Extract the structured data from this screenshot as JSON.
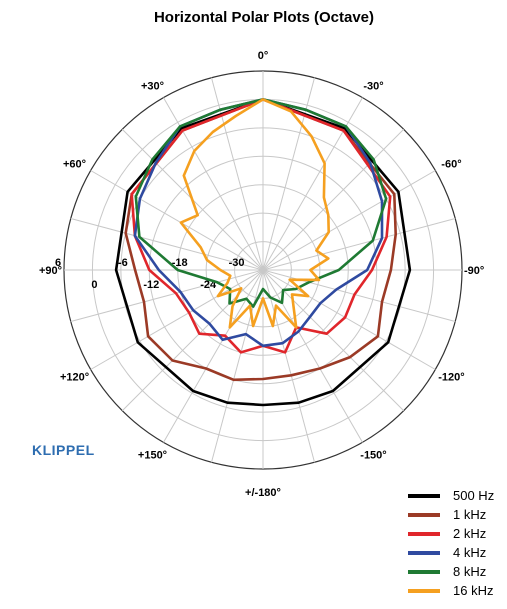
{
  "chart_data": {
    "type": "polar-line",
    "title": "Horizontal Polar Plots (Octave)",
    "angle_labels": [
      {
        "angle": 0,
        "text": "0°"
      },
      {
        "angle": 30,
        "text": "+30°"
      },
      {
        "angle": -30,
        "text": "-30°"
      },
      {
        "angle": 60,
        "text": "+60°"
      },
      {
        "angle": -60,
        "text": "-60°"
      },
      {
        "angle": 90,
        "text": "+90°"
      },
      {
        "angle": -90,
        "text": "-90°"
      },
      {
        "angle": 120,
        "text": "+120°"
      },
      {
        "angle": -120,
        "text": "-120°"
      },
      {
        "angle": 150,
        "text": "+150°"
      },
      {
        "angle": -150,
        "text": "-150°"
      },
      {
        "angle": 180,
        "text": "+/-180°"
      }
    ],
    "radial_range_db": [
      -36,
      6
    ],
    "radial_ticks": [
      6,
      0,
      -6,
      -12,
      -18,
      -24,
      -30
    ],
    "radial_tick_labels": [
      "6",
      "0",
      "-6",
      "-12",
      "-18",
      "-24",
      "-30"
    ],
    "angle_unit": "degrees",
    "angle_step": 15,
    "series": [
      {
        "name": "500 Hz",
        "color": "#000000",
        "angles": [
          0,
          30,
          60,
          90,
          120,
          150,
          165,
          180,
          -165,
          -150,
          -120,
          -90,
          -60,
          -30
        ],
        "values": [
          0,
          -1.5,
          -3,
          -5,
          -5.5,
          -6.5,
          -7,
          -7.5,
          -7,
          -6.5,
          -5.5,
          -5,
          -3,
          -1.5
        ]
      },
      {
        "name": "1 kHz",
        "color": "#9b3a26",
        "angles": [
          0,
          30,
          60,
          75,
          90,
          105,
          120,
          135,
          150,
          165,
          180,
          -165,
          -150,
          -135,
          -120,
          -105,
          -90,
          -75,
          -60,
          -30
        ],
        "values": [
          0,
          -2,
          -4,
          -6,
          -9,
          -10,
          -8,
          -9,
          -12,
          -12,
          -13,
          -13,
          -12,
          -10,
          -8,
          -10,
          -9,
          -7,
          -4,
          -2
        ]
      },
      {
        "name": "2 kHz",
        "color": "#e0262b",
        "angles": [
          0,
          30,
          60,
          75,
          90,
          105,
          120,
          135,
          150,
          165,
          180,
          -165,
          -150,
          -135,
          -120,
          -105,
          -90,
          -75,
          -60,
          -30
        ],
        "values": [
          0,
          -2,
          -4,
          -8,
          -12,
          -17,
          -18,
          -17,
          -20,
          -18,
          -20,
          -18,
          -22,
          -17,
          -16,
          -16,
          -13,
          -9,
          -5,
          -2
        ]
      },
      {
        "name": "4 kHz",
        "color": "#2f4aa0",
        "angles": [
          0,
          15,
          30,
          45,
          60,
          75,
          90,
          105,
          120,
          135,
          150,
          165,
          180,
          -165,
          -150,
          -135,
          -120,
          -105,
          -90,
          -75,
          -60,
          -45,
          -30,
          -15
        ],
        "values": [
          0,
          -1,
          -1,
          -4,
          -6,
          -8,
          -14,
          -18,
          -19,
          -20,
          -19,
          -22,
          -20,
          -20,
          -21,
          -22,
          -22,
          -20,
          -14,
          -10,
          -7,
          -4,
          -1,
          -1
        ]
      },
      {
        "name": "8 kHz",
        "color": "#1f7a33",
        "angles": [
          0,
          15,
          30,
          45,
          60,
          75,
          90,
          105,
          120,
          135,
          150,
          165,
          180,
          -165,
          -150,
          -135,
          -120,
          -105,
          -90,
          -75,
          -60,
          -45,
          -30,
          -15
        ],
        "values": [
          0,
          -1,
          -1,
          -3,
          -5,
          -9,
          -18,
          -26,
          -28,
          -26,
          -29,
          -28,
          -32,
          -30,
          -28,
          -30,
          -28,
          -26,
          -20,
          -12,
          -6,
          -3,
          -1,
          -1
        ]
      },
      {
        "name": "16 kHz",
        "color": "#f5a020",
        "angles": [
          0,
          10,
          20,
          30,
          40,
          50,
          60,
          70,
          80,
          90,
          100,
          110,
          120,
          130,
          140,
          150,
          160,
          170,
          180,
          -170,
          -160,
          -150,
          -140,
          -130,
          -120,
          -110,
          -100,
          -90,
          -80,
          -70,
          -60,
          -50,
          -40,
          -30,
          -20,
          -10
        ],
        "values": [
          0,
          -3,
          -5,
          -7,
          -10,
          -18,
          -16,
          -22,
          -24,
          -27,
          -29,
          -28,
          -25,
          -30,
          -26,
          -22,
          -28,
          -24,
          -30,
          -24,
          -28,
          -22,
          -26,
          -28,
          -25,
          -30,
          -24,
          -26,
          -22,
          -24,
          -20,
          -18,
          -16,
          -10,
          -6,
          -2
        ]
      }
    ]
  },
  "logo": {
    "text": "KLIPPEL"
  }
}
